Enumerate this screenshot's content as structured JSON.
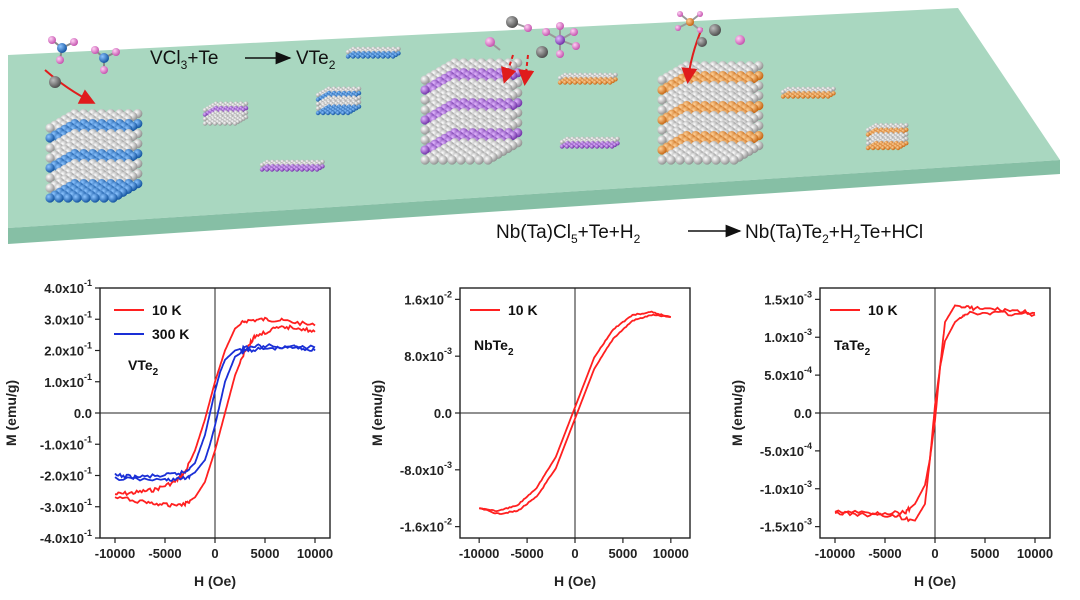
{
  "scene": {
    "equation_vte2": {
      "reactants": "VCl",
      "sub1": "3",
      "plus_te": "+Te",
      "product": "VTe",
      "sub2": "2"
    },
    "equation_nbta": {
      "left1": "Nb(Ta)Cl",
      "left_sub": "5",
      "left2": "+Te+H",
      "left_sub2": "2",
      "right1": "Nb(Ta)Te",
      "right_sub1": "2",
      "right2": "+H",
      "right_sub2": "2",
      "right3": "Te+HCl"
    },
    "colors": {
      "substrate_top": "#a8d5bf",
      "substrate_side": "#8fc2ab",
      "vte2": "#1f6fc2",
      "nbte2": "#9b59d0",
      "tate2": "#e88a1a",
      "te": "#c9c9c9"
    }
  },
  "chart_data": [
    {
      "type": "line",
      "title": "",
      "xlabel": "H (Oe)",
      "ylabel": "M (emu/g)",
      "xlim": [
        -11500,
        11500
      ],
      "ylim": [
        -0.4,
        0.4
      ],
      "xticks": [
        -10000,
        -5000,
        0,
        5000,
        10000
      ],
      "xtick_labels": [
        "-10000",
        "-5000",
        "0",
        "5000",
        "10000"
      ],
      "yticks": [
        0.4,
        0.3,
        0.2,
        0.1,
        0.0,
        -0.1,
        -0.2,
        -0.3,
        -0.4
      ],
      "ytick_labels": [
        {
          "m": "4.0x10",
          "e": "-1"
        },
        {
          "m": "3.0x10",
          "e": "-1"
        },
        {
          "m": "2.0x10",
          "e": "-1"
        },
        {
          "m": "1.0x10",
          "e": "-1"
        },
        {
          "m": "0.0",
          "e": ""
        },
        {
          "m": "-1.0x10",
          "e": "-1"
        },
        {
          "m": "-2.0x10",
          "e": "-1"
        },
        {
          "m": "-3.0x10",
          "e": "-1"
        },
        {
          "m": "-4.0x10",
          "e": "-1"
        }
      ],
      "sample_label": {
        "main": "VTe",
        "sub": "2"
      },
      "series": [
        {
          "name": "10 K",
          "color": "#ff2020",
          "upper_x": [
            -10000,
            -8000,
            -6000,
            -4000,
            -3000,
            -2000,
            -1000,
            0,
            1000,
            2000,
            3000,
            5000,
            7000,
            10000
          ],
          "upper_y": [
            -0.26,
            -0.255,
            -0.245,
            -0.22,
            -0.19,
            -0.12,
            -0.02,
            0.1,
            0.2,
            0.27,
            0.295,
            0.3,
            0.295,
            0.28
          ],
          "lower_x": [
            -10000,
            -7000,
            -5000,
            -3000,
            -2000,
            -1000,
            0,
            1000,
            2000,
            3000,
            4000,
            6000,
            8000,
            10000
          ],
          "lower_y": [
            -0.27,
            -0.285,
            -0.295,
            -0.29,
            -0.27,
            -0.22,
            -0.12,
            0.0,
            0.12,
            0.2,
            0.245,
            0.27,
            0.275,
            0.26
          ]
        },
        {
          "name": "300 K",
          "color": "#1a2fd6",
          "upper_x": [
            -10000,
            -8000,
            -5000,
            -3000,
            -2000,
            -1000,
            -500,
            0,
            500,
            1000,
            2000,
            3000,
            5000,
            10000
          ],
          "upper_y": [
            -0.2,
            -0.205,
            -0.2,
            -0.19,
            -0.16,
            -0.07,
            0.0,
            0.07,
            0.13,
            0.17,
            0.2,
            0.21,
            0.215,
            0.21
          ],
          "lower_x": [
            -10000,
            -5000,
            -3000,
            -2000,
            -1000,
            -500,
            0,
            500,
            1000,
            2000,
            3000,
            5000,
            8000,
            10000
          ],
          "lower_y": [
            -0.21,
            -0.215,
            -0.21,
            -0.19,
            -0.15,
            -0.1,
            -0.04,
            0.03,
            0.1,
            0.18,
            0.2,
            0.205,
            0.21,
            0.2
          ]
        }
      ]
    },
    {
      "type": "line",
      "title": "",
      "xlabel": "H (Oe)",
      "ylabel": "M (emu/g)",
      "xlim": [
        -12000,
        12000
      ],
      "ylim": [
        -0.0176,
        0.0176
      ],
      "xticks": [
        -10000,
        -5000,
        0,
        5000,
        10000
      ],
      "xtick_labels": [
        "-10000",
        "-5000",
        "0",
        "5000",
        "10000"
      ],
      "yticks": [
        0.016,
        0.008,
        0.0,
        -0.008,
        -0.016
      ],
      "ytick_labels": [
        {
          "m": "1.6x10",
          "e": "-2"
        },
        {
          "m": "8.0x10",
          "e": "-3"
        },
        {
          "m": "0.0",
          "e": ""
        },
        {
          "m": "-8.0x10",
          "e": "-3"
        },
        {
          "m": "-1.6x10",
          "e": "-2"
        }
      ],
      "sample_label": {
        "main": "NbTe",
        "sub": "2"
      },
      "series": [
        {
          "name": "10 K",
          "color": "#ff2020",
          "upper_x": [
            -10000,
            -8000,
            -6000,
            -4000,
            -2000,
            0,
            2000,
            4000,
            6000,
            8000,
            10000
          ],
          "upper_y": [
            -0.0134,
            -0.0138,
            -0.013,
            -0.0105,
            -0.0062,
            0.0008,
            0.0078,
            0.0118,
            0.0138,
            0.0142,
            0.0135
          ],
          "lower_x": [
            -10000,
            -8000,
            -6000,
            -4000,
            -2000,
            0,
            2000,
            4000,
            6000,
            8000,
            10000
          ],
          "lower_y": [
            -0.0134,
            -0.0142,
            -0.0138,
            -0.0118,
            -0.0078,
            -0.0008,
            0.0062,
            0.0105,
            0.013,
            0.0138,
            0.0135
          ]
        }
      ]
    },
    {
      "type": "line",
      "title": "",
      "xlabel": "H (Oe)",
      "ylabel": "M (emu/g)",
      "xlim": [
        -11500,
        11500
      ],
      "ylim": [
        -0.00165,
        0.00165
      ],
      "xticks": [
        -10000,
        -5000,
        0,
        5000,
        10000
      ],
      "xtick_labels": [
        "-10000",
        "-5000",
        "0",
        "5000",
        "10000"
      ],
      "yticks": [
        0.0015,
        0.001,
        0.0005,
        0.0,
        -0.0005,
        -0.001,
        -0.0015
      ],
      "ytick_labels": [
        {
          "m": "1.5x10",
          "e": "-3"
        },
        {
          "m": "1.0x10",
          "e": "-3"
        },
        {
          "m": "5.0x10",
          "e": "-4"
        },
        {
          "m": "0.0",
          "e": ""
        },
        {
          "m": "-5.0x10",
          "e": "-4"
        },
        {
          "m": "-1.0x10",
          "e": "-3"
        },
        {
          "m": "-1.5x10",
          "e": "-3"
        }
      ],
      "sample_label": {
        "main": "TaTe",
        "sub": "2"
      },
      "series": [
        {
          "name": "10 K",
          "color": "#ff2020",
          "upper_x": [
            -10000,
            -6000,
            -3000,
            -2000,
            -1000,
            -500,
            0,
            500,
            1000,
            2000,
            4000,
            7000,
            10000
          ],
          "upper_y": [
            -0.0013,
            -0.00132,
            -0.00131,
            -0.0012,
            -0.00095,
            -0.0006,
            -0.0001,
            0.0006,
            0.0012,
            0.00142,
            0.00138,
            0.00136,
            0.00132
          ],
          "lower_x": [
            -10000,
            -7000,
            -4000,
            -2000,
            -1000,
            -500,
            0,
            500,
            1000,
            2000,
            3000,
            6000,
            10000
          ],
          "lower_y": [
            -0.00132,
            -0.00134,
            -0.00136,
            -0.00142,
            -0.0012,
            -0.0006,
            0.0001,
            0.0006,
            0.00095,
            0.0012,
            0.00131,
            0.00132,
            0.0013
          ]
        }
      ]
    }
  ]
}
